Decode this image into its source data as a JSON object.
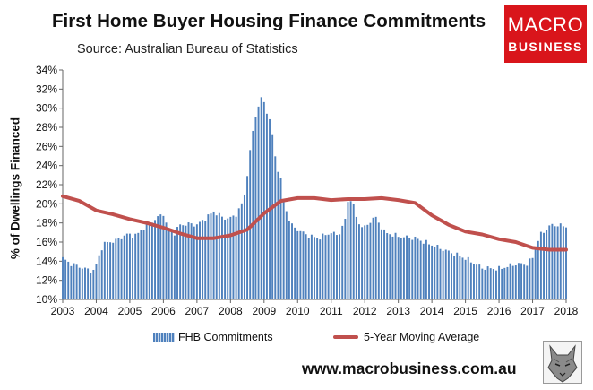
{
  "title": "First Home Buyer Housing Finance Commitments",
  "subtitle": "Source: Australian Bureau of Statistics",
  "logo": {
    "line1": "MACRO",
    "line2": "BUSINESS"
  },
  "website": "www.macrobusiness.com.au",
  "colors": {
    "bars": "#4f81bd",
    "moving_average": "#c0504d",
    "logo": "#d9151b"
  },
  "icons": {
    "logo": "macrobusiness-logo",
    "wolf": "wolf-emblem-icon"
  },
  "chart_data": {
    "type": "bar",
    "title": "First Home Buyer Housing Finance Commitments",
    "subtitle": "Source: Australian Bureau of Statistics",
    "xlabel": "",
    "ylabel": "% of Dwellings Financed",
    "ylim": [
      10,
      34
    ],
    "y_ticks": [
      "10%",
      "12%",
      "14%",
      "16%",
      "18%",
      "20%",
      "22%",
      "24%",
      "26%",
      "28%",
      "30%",
      "32%",
      "34%"
    ],
    "x_ticks": [
      "2003",
      "2004",
      "2005",
      "2006",
      "2007",
      "2008",
      "2009",
      "2010",
      "2011",
      "2012",
      "2013",
      "2014",
      "2015",
      "2016",
      "2017",
      "2018"
    ],
    "x_range": [
      2003,
      2018
    ],
    "legend_position": "bottom",
    "grid": false,
    "series": [
      {
        "name": "FHB Commitments",
        "type": "bar",
        "anchors": [
          [
            2003.0,
            14.3
          ],
          [
            2003.2,
            13.8
          ],
          [
            2003.6,
            13.3
          ],
          [
            2003.9,
            12.9
          ],
          [
            2004.0,
            13.6
          ],
          [
            2004.2,
            15.8
          ],
          [
            2004.6,
            16.2
          ],
          [
            2004.9,
            16.8
          ],
          [
            2005.2,
            16.7
          ],
          [
            2005.4,
            17.5
          ],
          [
            2005.8,
            18.5
          ],
          [
            2006.0,
            19.0
          ],
          [
            2006.1,
            17.7
          ],
          [
            2006.3,
            16.8
          ],
          [
            2006.5,
            17.8
          ],
          [
            2006.8,
            17.9
          ],
          [
            2007.0,
            17.8
          ],
          [
            2007.3,
            18.6
          ],
          [
            2007.5,
            19.2
          ],
          [
            2007.8,
            18.5
          ],
          [
            2008.0,
            18.5
          ],
          [
            2008.2,
            19.0
          ],
          [
            2008.4,
            20.5
          ],
          [
            2008.55,
            24.5
          ],
          [
            2008.7,
            28.5
          ],
          [
            2008.85,
            30.5
          ],
          [
            2008.95,
            31.2
          ],
          [
            2009.05,
            30.0
          ],
          [
            2009.2,
            28.4
          ],
          [
            2009.35,
            24.5
          ],
          [
            2009.5,
            22.5
          ],
          [
            2009.6,
            20.0
          ],
          [
            2009.8,
            17.8
          ],
          [
            2010.0,
            17.3
          ],
          [
            2010.3,
            16.7
          ],
          [
            2010.6,
            16.4
          ],
          [
            2011.0,
            17.0
          ],
          [
            2011.2,
            16.7
          ],
          [
            2011.4,
            18.0
          ],
          [
            2011.5,
            20.2
          ],
          [
            2011.6,
            20.6
          ],
          [
            2011.8,
            18.0
          ],
          [
            2012.0,
            17.5
          ],
          [
            2012.3,
            18.7
          ],
          [
            2012.6,
            17.0
          ],
          [
            2013.0,
            16.6
          ],
          [
            2013.5,
            16.4
          ],
          [
            2014.0,
            15.7
          ],
          [
            2014.5,
            15.0
          ],
          [
            2015.0,
            14.3
          ],
          [
            2015.5,
            13.3
          ],
          [
            2016.0,
            13.2
          ],
          [
            2016.5,
            13.7
          ],
          [
            2016.85,
            13.7
          ],
          [
            2017.0,
            14.4
          ],
          [
            2017.2,
            16.6
          ],
          [
            2017.5,
            17.7
          ],
          [
            2017.75,
            17.8
          ],
          [
            2018.0,
            17.6
          ]
        ]
      },
      {
        "name": "5-Year Moving Average",
        "type": "line",
        "anchors": [
          [
            2003.0,
            20.8
          ],
          [
            2003.5,
            20.3
          ],
          [
            2004.0,
            19.3
          ],
          [
            2004.5,
            18.9
          ],
          [
            2005.0,
            18.4
          ],
          [
            2005.5,
            18.0
          ],
          [
            2006.0,
            17.5
          ],
          [
            2006.5,
            16.9
          ],
          [
            2007.0,
            16.4
          ],
          [
            2007.5,
            16.4
          ],
          [
            2008.0,
            16.7
          ],
          [
            2008.5,
            17.3
          ],
          [
            2009.0,
            19.0
          ],
          [
            2009.5,
            20.3
          ],
          [
            2010.0,
            20.6
          ],
          [
            2010.5,
            20.6
          ],
          [
            2011.0,
            20.4
          ],
          [
            2011.5,
            20.5
          ],
          [
            2012.0,
            20.5
          ],
          [
            2012.5,
            20.6
          ],
          [
            2013.0,
            20.4
          ],
          [
            2013.5,
            20.1
          ],
          [
            2014.0,
            18.8
          ],
          [
            2014.5,
            17.8
          ],
          [
            2015.0,
            17.1
          ],
          [
            2015.5,
            16.8
          ],
          [
            2016.0,
            16.3
          ],
          [
            2016.5,
            16.0
          ],
          [
            2017.0,
            15.4
          ],
          [
            2017.5,
            15.2
          ],
          [
            2018.0,
            15.2
          ]
        ]
      }
    ]
  }
}
